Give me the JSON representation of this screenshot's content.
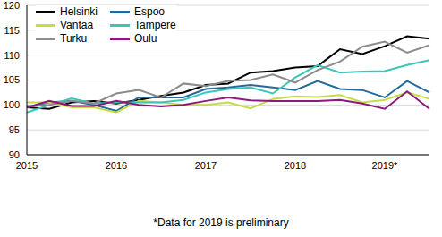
{
  "chart_data": {
    "type": "line",
    "categories": [
      "2015",
      null,
      null,
      null,
      "2016",
      null,
      null,
      null,
      "2017",
      null,
      null,
      null,
      "2018",
      null,
      null,
      null,
      "2019*",
      null,
      null
    ],
    "series": [
      {
        "name": "Helsinki",
        "color": "#000000",
        "values": [
          99.5,
          99.2,
          100.5,
          100.8,
          100.3,
          101.0,
          101.8,
          102.5,
          104.0,
          104.3,
          106.5,
          106.8,
          107.5,
          107.8,
          111.2,
          110.2,
          111.8,
          113.8,
          113.3
        ]
      },
      {
        "name": "Espoo",
        "color": "#23699e",
        "values": [
          99.5,
          100.5,
          100.8,
          100.0,
          98.8,
          101.5,
          101.5,
          101.5,
          103.2,
          103.5,
          104.0,
          103.5,
          103.0,
          104.8,
          103.2,
          103.0,
          101.5,
          104.8,
          102.5
        ]
      },
      {
        "name": "Vantaa",
        "color": "#c5dc48",
        "values": [
          100.5,
          100.5,
          99.5,
          99.5,
          98.5,
          100.8,
          100.5,
          100.0,
          100.0,
          100.5,
          99.3,
          101.2,
          101.7,
          101.6,
          102.0,
          100.5,
          101.0,
          102.5,
          101.2
        ]
      },
      {
        "name": "Tampere",
        "color": "#3cc6b6",
        "values": [
          98.5,
          100.0,
          101.3,
          100.3,
          100.5,
          100.5,
          100.5,
          101.0,
          102.5,
          103.2,
          103.5,
          102.3,
          105.5,
          108.0,
          106.5,
          106.7,
          106.8,
          108.0,
          109.0
        ]
      },
      {
        "name": "Turku",
        "color": "#8c8c8c",
        "values": [
          99.8,
          100.0,
          100.8,
          100.3,
          102.3,
          103.0,
          101.5,
          104.3,
          103.8,
          104.8,
          105.0,
          106.1,
          104.5,
          107.0,
          108.7,
          111.7,
          112.7,
          110.5,
          112.0
        ]
      },
      {
        "name": "Oulu",
        "color": "#8b1a7a",
        "values": [
          99.5,
          100.8,
          99.8,
          99.8,
          100.8,
          100.0,
          99.7,
          100.0,
          100.8,
          101.5,
          100.9,
          100.8,
          100.8,
          100.8,
          101.0,
          100.3,
          99.2,
          102.7,
          99.2
        ]
      }
    ],
    "ylim": [
      90,
      120
    ],
    "yticks": [
      90,
      95,
      100,
      105,
      110,
      115,
      120
    ],
    "grid": true,
    "legend": "upper left",
    "annotations": [
      "*Data for 2019 is preliminary"
    ]
  }
}
